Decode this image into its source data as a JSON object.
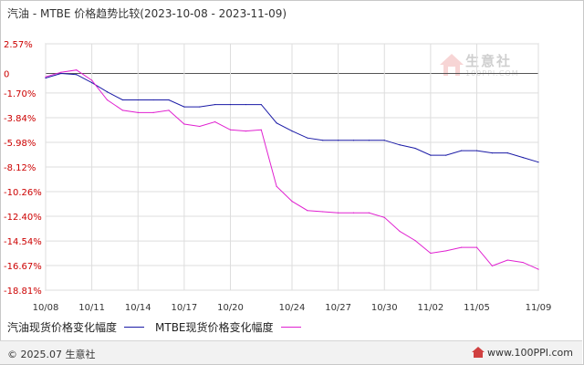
{
  "header": {
    "title_main": "汽油 - MTBE 价格趋势比较",
    "title_range": "(2023-10-08 - 2023-11-09)"
  },
  "watermark": {
    "text": "生意社",
    "sub": "100PPI.COM"
  },
  "footer": {
    "copyright": "© 2025.07 生意社",
    "site": "www.100PPI.com"
  },
  "colors": {
    "series_gasoline": "#1a1aa6",
    "series_mtbe": "#e020d0",
    "zero_line": "#555555",
    "grid": "#dddddd",
    "axis_text": "#cc0000"
  },
  "chart_data": {
    "type": "line",
    "title": "汽油 - MTBE 价格趋势比较(2023-10-08 - 2023-11-09)",
    "xlabel": "",
    "ylabel": "",
    "x_ticks": [
      "10/08",
      "10/11",
      "10/14",
      "10/17",
      "10/20",
      "10/24",
      "10/27",
      "10/30",
      "11/02",
      "11/05",
      "11/09"
    ],
    "y_ticks": [
      "2.57%",
      "0",
      "-1.70%",
      "-3.84%",
      "-5.98%",
      "-8.12%",
      "-10.26%",
      "-12.40%",
      "-14.54%",
      "-16.67%",
      "-18.81%"
    ],
    "y_tick_values": [
      2.57,
      0,
      -1.7,
      -3.84,
      -5.98,
      -8.12,
      -10.26,
      -12.4,
      -14.54,
      -16.67,
      -18.81
    ],
    "ylim": [
      -18.81,
      2.57
    ],
    "grid": true,
    "legend_position": "bottom",
    "x": [
      "10/08",
      "10/09",
      "10/10",
      "10/11",
      "10/12",
      "10/13",
      "10/14",
      "10/15",
      "10/16",
      "10/17",
      "10/18",
      "10/19",
      "10/20",
      "10/21",
      "10/22",
      "10/23",
      "10/24",
      "10/25",
      "10/26",
      "10/27",
      "10/28",
      "10/29",
      "10/30",
      "10/31",
      "11/01",
      "11/02",
      "11/03",
      "11/04",
      "11/05",
      "11/06",
      "11/07",
      "11/08",
      "11/09"
    ],
    "series": [
      {
        "name": "汽油现货价格变化幅度",
        "color": "#1a1aa6",
        "values": [
          -0.4,
          0.0,
          -0.1,
          -0.8,
          -1.6,
          -2.3,
          -2.3,
          -2.3,
          -2.3,
          -2.9,
          -2.9,
          -2.7,
          -2.7,
          -2.7,
          -2.7,
          -4.3,
          -5.0,
          -5.6,
          -5.8,
          -5.8,
          -5.8,
          -5.8,
          -5.8,
          -6.2,
          -6.5,
          -7.1,
          -7.1,
          -6.7,
          -6.7,
          -6.9,
          -6.9,
          -7.3,
          -7.7
        ]
      },
      {
        "name": "MTBE现货价格变化幅度",
        "color": "#e020d0",
        "values": [
          -0.3,
          0.1,
          0.3,
          -0.6,
          -2.3,
          -3.2,
          -3.4,
          -3.4,
          -3.2,
          -4.4,
          -4.6,
          -4.2,
          -4.9,
          -5.0,
          -4.9,
          -9.8,
          -11.1,
          -11.9,
          -12.0,
          -12.1,
          -12.1,
          -12.1,
          -12.5,
          -13.7,
          -14.5,
          -15.6,
          -15.4,
          -15.1,
          -15.1,
          -16.7,
          -16.2,
          -16.4,
          -17.0
        ]
      }
    ]
  }
}
